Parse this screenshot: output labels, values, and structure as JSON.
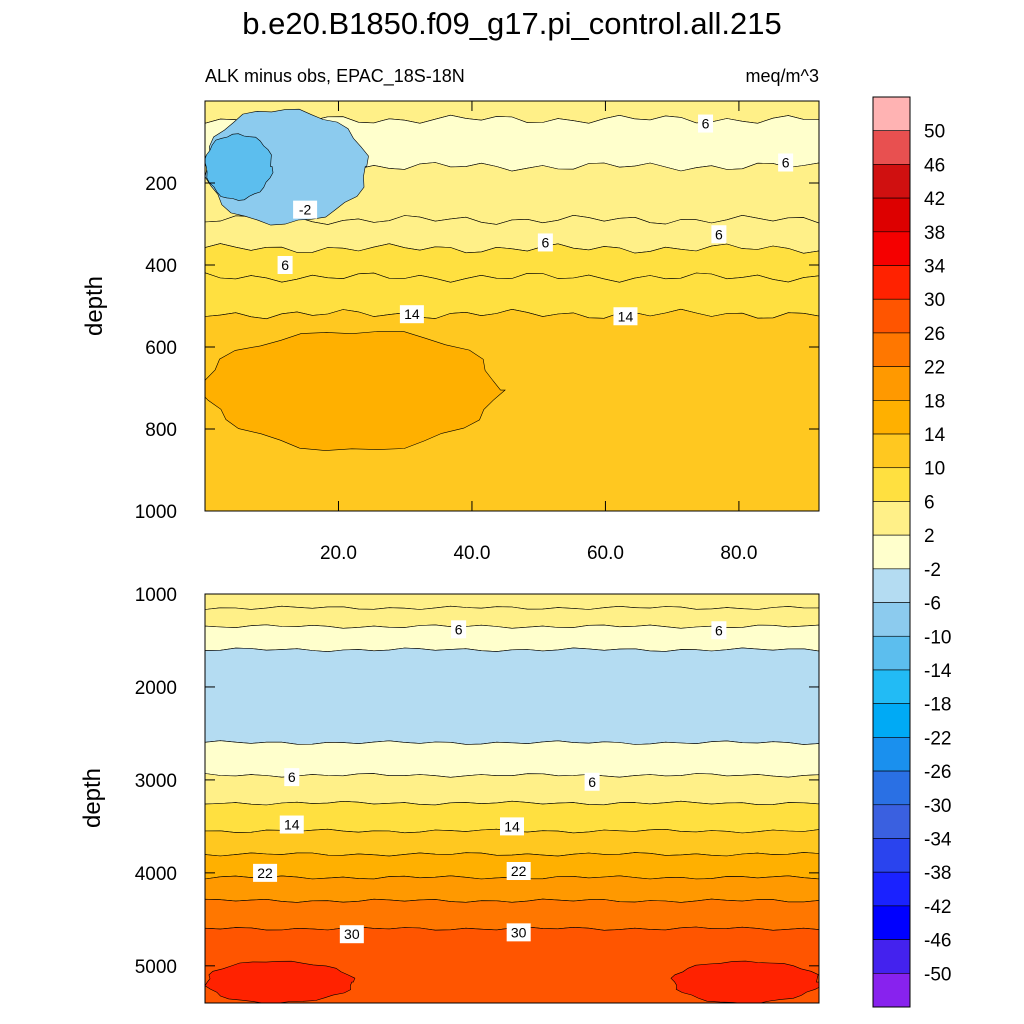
{
  "figure": {
    "title": "b.e20.B1850.f09_g17.pi_control.all.215",
    "subtitle_left": "ALK minus obs, EPAC_18S-18N",
    "subtitle_right": "meq/m^3"
  },
  "chart_data": [
    {
      "type": "heatmap",
      "panel": "upper",
      "ylabel": "depth",
      "xlabel": "",
      "xlim": [
        0,
        92
      ],
      "ylim": [
        1000,
        0
      ],
      "x_ticks": [
        "20.0",
        "40.0",
        "60.0",
        "80.0"
      ],
      "x_tick_values": [
        20,
        40,
        60,
        80
      ],
      "y_ticks": [
        "200",
        "400",
        "600",
        "800",
        "1000"
      ],
      "y_tick_values": [
        200,
        400,
        600,
        800,
        1000
      ],
      "bands": [
        {
          "top": 0,
          "bottom": 45,
          "level": 6
        },
        {
          "top": 45,
          "bottom": 160,
          "level": 2
        },
        {
          "top": 160,
          "bottom": 290,
          "level": 6
        },
        {
          "top": 290,
          "bottom": 360,
          "level": 6
        },
        {
          "top": 360,
          "bottom": 430,
          "level": 10
        },
        {
          "top": 430,
          "bottom": 520,
          "level": 10
        },
        {
          "top": 520,
          "bottom": 1000,
          "level": 14
        }
      ],
      "patches": [
        {
          "name": "western-low",
          "x": [
            0,
            24
          ],
          "depth": [
            20,
            300
          ],
          "level": -6
        },
        {
          "name": "western-core-low",
          "x": [
            0,
            10
          ],
          "depth": [
            80,
            240
          ],
          "level": -10
        },
        {
          "name": "mid-depth-high",
          "x": [
            0,
            44
          ],
          "depth": [
            560,
            850
          ],
          "level": 18
        }
      ],
      "contour_labels": [
        {
          "text": "6",
          "x": 75,
          "depth": 55
        },
        {
          "text": "6",
          "x": 87,
          "depth": 150
        },
        {
          "text": "-2",
          "x": 15,
          "depth": 265
        },
        {
          "text": "6",
          "x": 51,
          "depth": 345
        },
        {
          "text": "6",
          "x": 77,
          "depth": 325
        },
        {
          "text": "6",
          "x": 12,
          "depth": 400
        },
        {
          "text": "14",
          "x": 31,
          "depth": 520
        },
        {
          "text": "14",
          "x": 63,
          "depth": 525
        }
      ]
    },
    {
      "type": "heatmap",
      "panel": "lower",
      "ylabel": "depth",
      "xlabel": "",
      "xlim": [
        0,
        92
      ],
      "ylim": [
        5400,
        1000
      ],
      "y_ticks": [
        "1000",
        "2000",
        "3000",
        "4000",
        "5000"
      ],
      "y_tick_values": [
        1000,
        2000,
        3000,
        4000,
        5000
      ],
      "bands": [
        {
          "top": 1000,
          "bottom": 1150,
          "level": 6
        },
        {
          "top": 1150,
          "bottom": 1350,
          "level": 6
        },
        {
          "top": 1350,
          "bottom": 1600,
          "level": 2
        },
        {
          "top": 1600,
          "bottom": 2600,
          "level": -2
        },
        {
          "top": 2600,
          "bottom": 2950,
          "level": 2
        },
        {
          "top": 2950,
          "bottom": 3250,
          "level": 6
        },
        {
          "top": 3250,
          "bottom": 3550,
          "level": 10
        },
        {
          "top": 3550,
          "bottom": 3800,
          "level": 14
        },
        {
          "top": 3800,
          "bottom": 4050,
          "level": 18
        },
        {
          "top": 4050,
          "bottom": 4300,
          "level": 22
        },
        {
          "top": 4300,
          "bottom": 4600,
          "level": 26
        },
        {
          "top": 4600,
          "bottom": 5400,
          "level": 30
        }
      ],
      "patches": [
        {
          "name": "bottom-west-high",
          "x": [
            0,
            22
          ],
          "depth": [
            4950,
            5400
          ],
          "level": 34
        },
        {
          "name": "bottom-east-high",
          "x": [
            70,
            92
          ],
          "depth": [
            4950,
            5400
          ],
          "level": 34
        }
      ],
      "contour_labels": [
        {
          "text": "6",
          "x": 38,
          "depth": 1380
        },
        {
          "text": "6",
          "x": 77,
          "depth": 1390
        },
        {
          "text": "6",
          "x": 13,
          "depth": 2970
        },
        {
          "text": "6",
          "x": 58,
          "depth": 3020
        },
        {
          "text": "14",
          "x": 13,
          "depth": 3480
        },
        {
          "text": "14",
          "x": 46,
          "depth": 3500
        },
        {
          "text": "22",
          "x": 9,
          "depth": 4000
        },
        {
          "text": "22",
          "x": 47,
          "depth": 3980
        },
        {
          "text": "30",
          "x": 22,
          "depth": 4660
        },
        {
          "text": "30",
          "x": 47,
          "depth": 4640
        }
      ]
    }
  ],
  "colorbar": {
    "labels": [
      "50",
      "46",
      "42",
      "38",
      "34",
      "30",
      "26",
      "22",
      "18",
      "14",
      "10",
      "6",
      "2",
      "-2",
      "-6",
      "-10",
      "-14",
      "-18",
      "-22",
      "-26",
      "-30",
      "-34",
      "-38",
      "-42",
      "-46",
      "-50"
    ],
    "level_values": [
      50,
      46,
      42,
      38,
      34,
      30,
      26,
      22,
      18,
      14,
      10,
      6,
      2,
      -2,
      -6,
      -10,
      -14,
      -18,
      -22,
      -26,
      -30,
      -34,
      -38,
      -42,
      -46,
      -50
    ],
    "colors": [
      "#ffb3b3",
      "#e85050",
      "#d01010",
      "#dd0000",
      "#f50000",
      "#ff2200",
      "#ff5500",
      "#ff7700",
      "#ff9900",
      "#ffb000",
      "#ffc820",
      "#ffe040",
      "#fff088",
      "#ffffcc",
      "#b4dcf2",
      "#8ccbee",
      "#5cbeee",
      "#22bbf5",
      "#00aaf5",
      "#1a90ee",
      "#2a70e4",
      "#3a60e0",
      "#2a44ee",
      "#1a22ff",
      "#0000ff",
      "#4422ee",
      "#8822ee"
    ]
  }
}
